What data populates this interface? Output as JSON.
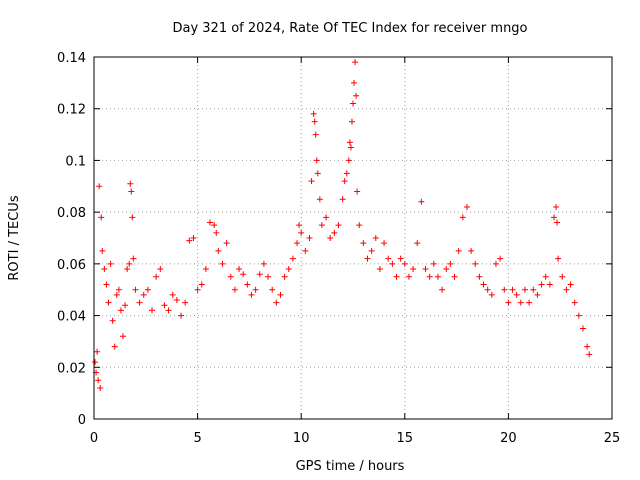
{
  "chart_data": {
    "type": "scatter",
    "title": "Day 321 of 2024, Rate Of TEC Index for receiver mngo",
    "xlabel": "GPS time / hours",
    "ylabel": "ROTI / TECUs",
    "xlim": [
      0,
      25
    ],
    "ylim": [
      0,
      0.14
    ],
    "xticks": [
      0,
      5,
      10,
      15,
      20,
      25
    ],
    "xtick_labels": [
      "0",
      "5",
      "10",
      "15",
      "20",
      "25"
    ],
    "yticks": [
      0,
      0.02,
      0.04,
      0.06,
      0.08,
      0.1,
      0.12,
      0.14
    ],
    "ytick_labels": [
      "0",
      "0.02",
      "0.04",
      "0.06",
      "0.08",
      "0.1",
      "0.12",
      "0.14"
    ],
    "grid": true,
    "marker": "+",
    "series_color": "#ff0000",
    "series": [
      {
        "name": "ROTI",
        "points": [
          [
            0.05,
            0.022
          ],
          [
            0.1,
            0.018
          ],
          [
            0.15,
            0.026
          ],
          [
            0.2,
            0.015
          ],
          [
            0.25,
            0.09
          ],
          [
            0.3,
            0.012
          ],
          [
            0.35,
            0.078
          ],
          [
            0.4,
            0.065
          ],
          [
            0.5,
            0.058
          ],
          [
            0.6,
            0.052
          ],
          [
            0.7,
            0.045
          ],
          [
            0.8,
            0.06
          ],
          [
            0.9,
            0.038
          ],
          [
            1.0,
            0.028
          ],
          [
            1.1,
            0.048
          ],
          [
            1.2,
            0.05
          ],
          [
            1.3,
            0.042
          ],
          [
            1.4,
            0.032
          ],
          [
            1.5,
            0.044
          ],
          [
            1.6,
            0.058
          ],
          [
            1.7,
            0.06
          ],
          [
            1.75,
            0.091
          ],
          [
            1.8,
            0.088
          ],
          [
            1.85,
            0.078
          ],
          [
            1.9,
            0.062
          ],
          [
            2.0,
            0.05
          ],
          [
            2.2,
            0.045
          ],
          [
            2.4,
            0.048
          ],
          [
            2.6,
            0.05
          ],
          [
            2.8,
            0.042
          ],
          [
            3.0,
            0.055
          ],
          [
            3.2,
            0.058
          ],
          [
            3.4,
            0.044
          ],
          [
            3.6,
            0.042
          ],
          [
            3.8,
            0.048
          ],
          [
            4.0,
            0.046
          ],
          [
            4.2,
            0.04
          ],
          [
            4.4,
            0.045
          ],
          [
            4.6,
            0.069
          ],
          [
            4.8,
            0.07
          ],
          [
            5.0,
            0.05
          ],
          [
            5.2,
            0.052
          ],
          [
            5.4,
            0.058
          ],
          [
            5.6,
            0.076
          ],
          [
            5.8,
            0.075
          ],
          [
            5.9,
            0.072
          ],
          [
            6.0,
            0.065
          ],
          [
            6.2,
            0.06
          ],
          [
            6.4,
            0.068
          ],
          [
            6.6,
            0.055
          ],
          [
            6.8,
            0.05
          ],
          [
            7.0,
            0.058
          ],
          [
            7.2,
            0.056
          ],
          [
            7.4,
            0.052
          ],
          [
            7.6,
            0.048
          ],
          [
            7.8,
            0.05
          ],
          [
            8.0,
            0.056
          ],
          [
            8.2,
            0.06
          ],
          [
            8.4,
            0.055
          ],
          [
            8.6,
            0.05
          ],
          [
            8.8,
            0.045
          ],
          [
            9.0,
            0.048
          ],
          [
            9.2,
            0.055
          ],
          [
            9.4,
            0.058
          ],
          [
            9.6,
            0.062
          ],
          [
            9.8,
            0.068
          ],
          [
            9.9,
            0.075
          ],
          [
            10.0,
            0.072
          ],
          [
            10.2,
            0.065
          ],
          [
            10.4,
            0.07
          ],
          [
            10.5,
            0.092
          ],
          [
            10.6,
            0.118
          ],
          [
            10.65,
            0.115
          ],
          [
            10.7,
            0.11
          ],
          [
            10.75,
            0.1
          ],
          [
            10.8,
            0.095
          ],
          [
            10.9,
            0.085
          ],
          [
            11.0,
            0.075
          ],
          [
            11.2,
            0.078
          ],
          [
            11.4,
            0.07
          ],
          [
            11.6,
            0.072
          ],
          [
            11.8,
            0.075
          ],
          [
            12.0,
            0.085
          ],
          [
            12.1,
            0.092
          ],
          [
            12.2,
            0.095
          ],
          [
            12.3,
            0.1
          ],
          [
            12.35,
            0.107
          ],
          [
            12.4,
            0.105
          ],
          [
            12.45,
            0.115
          ],
          [
            12.5,
            0.122
          ],
          [
            12.55,
            0.13
          ],
          [
            12.6,
            0.138
          ],
          [
            12.65,
            0.125
          ],
          [
            12.7,
            0.088
          ],
          [
            12.8,
            0.075
          ],
          [
            13.0,
            0.068
          ],
          [
            13.2,
            0.062
          ],
          [
            13.4,
            0.065
          ],
          [
            13.6,
            0.07
          ],
          [
            13.8,
            0.058
          ],
          [
            14.0,
            0.068
          ],
          [
            14.2,
            0.062
          ],
          [
            14.4,
            0.06
          ],
          [
            14.6,
            0.055
          ],
          [
            14.8,
            0.062
          ],
          [
            15.0,
            0.06
          ],
          [
            15.2,
            0.055
          ],
          [
            15.4,
            0.058
          ],
          [
            15.6,
            0.068
          ],
          [
            15.8,
            0.084
          ],
          [
            16.0,
            0.058
          ],
          [
            16.2,
            0.055
          ],
          [
            16.4,
            0.06
          ],
          [
            16.6,
            0.055
          ],
          [
            16.8,
            0.05
          ],
          [
            17.0,
            0.058
          ],
          [
            17.2,
            0.06
          ],
          [
            17.4,
            0.055
          ],
          [
            17.6,
            0.065
          ],
          [
            17.8,
            0.078
          ],
          [
            18.0,
            0.082
          ],
          [
            18.2,
            0.065
          ],
          [
            18.4,
            0.06
          ],
          [
            18.6,
            0.055
          ],
          [
            18.8,
            0.052
          ],
          [
            19.0,
            0.05
          ],
          [
            19.2,
            0.048
          ],
          [
            19.4,
            0.06
          ],
          [
            19.6,
            0.062
          ],
          [
            19.8,
            0.05
          ],
          [
            20.0,
            0.045
          ],
          [
            20.2,
            0.05
          ],
          [
            20.4,
            0.048
          ],
          [
            20.6,
            0.045
          ],
          [
            20.8,
            0.05
          ],
          [
            21.0,
            0.045
          ],
          [
            21.2,
            0.05
          ],
          [
            21.4,
            0.048
          ],
          [
            21.6,
            0.052
          ],
          [
            21.8,
            0.055
          ],
          [
            22.0,
            0.052
          ],
          [
            22.2,
            0.078
          ],
          [
            22.3,
            0.082
          ],
          [
            22.35,
            0.076
          ],
          [
            22.4,
            0.062
          ],
          [
            22.6,
            0.055
          ],
          [
            22.8,
            0.05
          ],
          [
            23.0,
            0.052
          ],
          [
            23.2,
            0.045
          ],
          [
            23.4,
            0.04
          ],
          [
            23.6,
            0.035
          ],
          [
            23.8,
            0.028
          ],
          [
            23.9,
            0.025
          ]
        ]
      }
    ]
  }
}
